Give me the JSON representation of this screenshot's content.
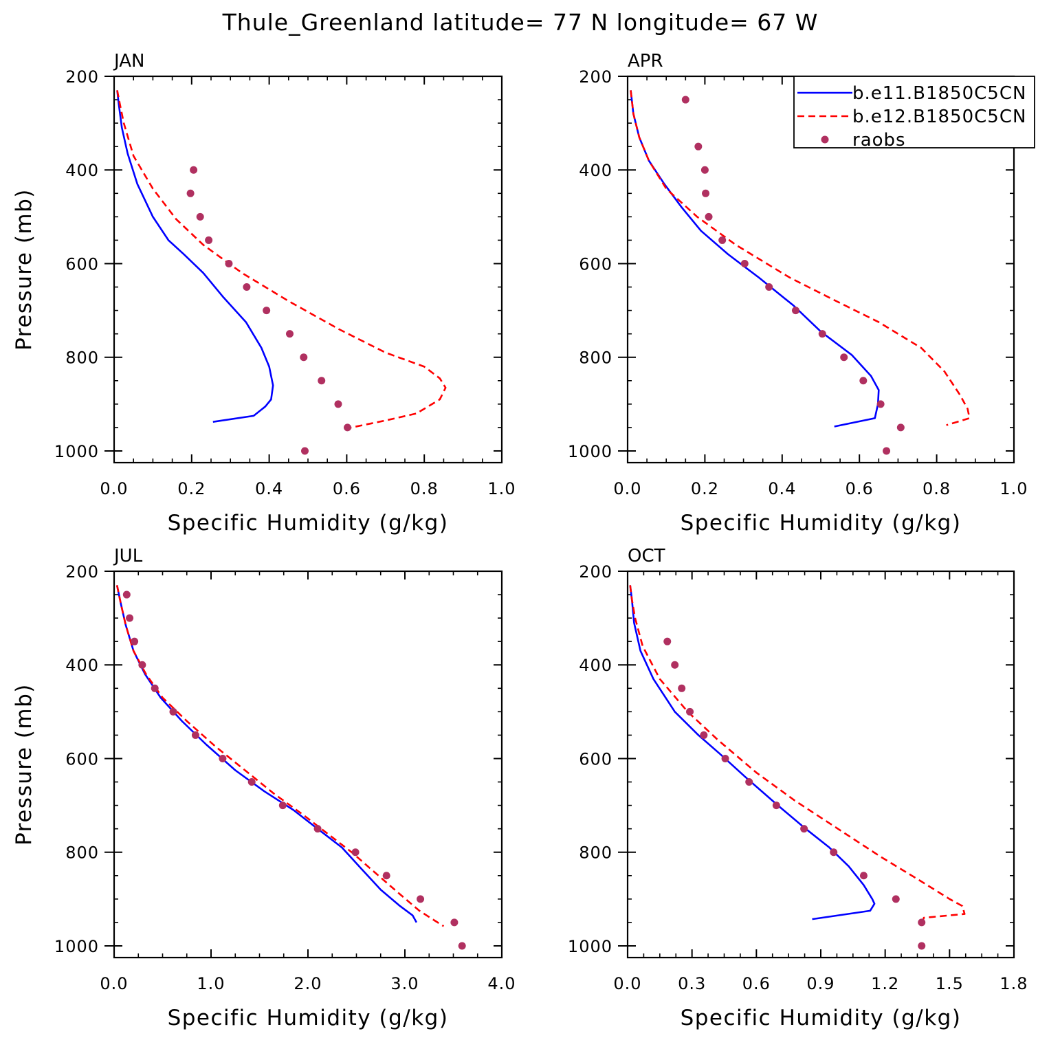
{
  "title": "Thule_Greenland  latitude= 77 N longitude= 67 W",
  "colors": {
    "model1": "#0000ff",
    "model2": "#ff0000",
    "raobs": "#b03060",
    "axis": "#000000"
  },
  "legend": {
    "placement": "top-right of APR panel",
    "entries": [
      {
        "label": "b.e11.B1850C5CN",
        "style": "solid",
        "color": "#0000ff"
      },
      {
        "label": "b.e12.B1850C5CN",
        "style": "dashed",
        "color": "#ff0000"
      },
      {
        "label": "raobs",
        "style": "dot",
        "color": "#b03060"
      }
    ]
  },
  "chart_data": [
    {
      "type": "line",
      "panel": "JAN",
      "xlabel": "Specific Humidity (g/kg)",
      "ylabel": "Pressure (mb)",
      "xlim": [
        0,
        1.0
      ],
      "ylim": [
        200,
        1025
      ],
      "y_inverted": true,
      "xticks": [
        "0.0",
        "0.2",
        "0.4",
        "0.6",
        "0.8",
        "1.0"
      ],
      "xtick_values": [
        0,
        0.2,
        0.4,
        0.6,
        0.8,
        1.0
      ],
      "yticks": [
        "200",
        "400",
        "600",
        "800",
        "1000"
      ],
      "yticks_values": [
        200,
        400,
        600,
        800,
        1000
      ],
      "series": [
        {
          "name": "b.e11.B1850C5CN",
          "style": "solid",
          "points": [
            [
              0.008,
              230
            ],
            [
              0.012,
              260
            ],
            [
              0.02,
              310
            ],
            [
              0.035,
              365
            ],
            [
              0.06,
              430
            ],
            [
              0.1,
              500
            ],
            [
              0.14,
              550
            ],
            [
              0.18,
              580
            ],
            [
              0.23,
              620
            ],
            [
              0.28,
              670
            ],
            [
              0.34,
              725
            ],
            [
              0.38,
              780
            ],
            [
              0.4,
              820
            ],
            [
              0.41,
              860
            ],
            [
              0.405,
              890
            ],
            [
              0.39,
              905
            ],
            [
              0.36,
              925
            ],
            [
              0.255,
              938
            ]
          ]
        },
        {
          "name": "b.e12.B1850C5CN",
          "style": "dashed",
          "points": [
            [
              0.008,
              230
            ],
            [
              0.015,
              260
            ],
            [
              0.025,
              300
            ],
            [
              0.05,
              370
            ],
            [
              0.1,
              440
            ],
            [
              0.16,
              505
            ],
            [
              0.23,
              560
            ],
            [
              0.33,
              620
            ],
            [
              0.45,
              680
            ],
            [
              0.58,
              740
            ],
            [
              0.7,
              790
            ],
            [
              0.8,
              820
            ],
            [
              0.84,
              845
            ],
            [
              0.855,
              865
            ],
            [
              0.84,
              890
            ],
            [
              0.78,
              920
            ],
            [
              0.7,
              935
            ],
            [
              0.6,
              952
            ]
          ]
        },
        {
          "name": "raobs",
          "style": "dot",
          "points": [
            [
              0.205,
              400
            ],
            [
              0.197,
              450
            ],
            [
              0.222,
              500
            ],
            [
              0.244,
              550
            ],
            [
              0.296,
              600
            ],
            [
              0.342,
              650
            ],
            [
              0.393,
              700
            ],
            [
              0.453,
              750
            ],
            [
              0.489,
              800
            ],
            [
              0.535,
              850
            ],
            [
              0.578,
              900
            ],
            [
              0.602,
              950
            ],
            [
              0.492,
              1000
            ]
          ]
        }
      ]
    },
    {
      "type": "line",
      "panel": "APR",
      "xlabel": "Specific Humidity (g/kg)",
      "ylabel": "",
      "xlim": [
        0,
        1.0
      ],
      "ylim": [
        200,
        1025
      ],
      "y_inverted": true,
      "xticks": [
        "0.0",
        "0.2",
        "0.4",
        "0.6",
        "0.8",
        "1.0"
      ],
      "xtick_values": [
        0,
        0.2,
        0.4,
        0.6,
        0.8,
        1.0
      ],
      "yticks": [
        "200",
        "400",
        "600",
        "800",
        "1000"
      ],
      "yticks_values": [
        200,
        400,
        600,
        800,
        1000
      ],
      "series": [
        {
          "name": "b.e11.B1850C5CN",
          "style": "solid",
          "points": [
            [
              0.008,
              230
            ],
            [
              0.015,
              280
            ],
            [
              0.03,
              330
            ],
            [
              0.055,
              380
            ],
            [
              0.095,
              430
            ],
            [
              0.14,
              480
            ],
            [
              0.19,
              530
            ],
            [
              0.26,
              580
            ],
            [
              0.34,
              630
            ],
            [
              0.43,
              690
            ],
            [
              0.5,
              745
            ],
            [
              0.58,
              795
            ],
            [
              0.63,
              840
            ],
            [
              0.65,
              870
            ],
            [
              0.648,
              900
            ],
            [
              0.64,
              930
            ],
            [
              0.535,
              948
            ]
          ]
        },
        {
          "name": "b.e12.B1850C5CN",
          "style": "dashed",
          "points": [
            [
              0.008,
              230
            ],
            [
              0.015,
              280
            ],
            [
              0.03,
              330
            ],
            [
              0.055,
              380
            ],
            [
              0.1,
              440
            ],
            [
              0.18,
              500
            ],
            [
              0.28,
              560
            ],
            [
              0.42,
              630
            ],
            [
              0.54,
              680
            ],
            [
              0.65,
              725
            ],
            [
              0.76,
              780
            ],
            [
              0.82,
              830
            ],
            [
              0.86,
              880
            ],
            [
              0.88,
              910
            ],
            [
              0.885,
              930
            ],
            [
              0.825,
              945
            ]
          ]
        },
        {
          "name": "raobs",
          "style": "dot",
          "points": [
            [
              0.15,
              250
            ],
            [
              0.183,
              350
            ],
            [
              0.2,
              400
            ],
            [
              0.202,
              450
            ],
            [
              0.21,
              500
            ],
            [
              0.245,
              550
            ],
            [
              0.303,
              600
            ],
            [
              0.366,
              650
            ],
            [
              0.435,
              700
            ],
            [
              0.504,
              750
            ],
            [
              0.56,
              800
            ],
            [
              0.61,
              850
            ],
            [
              0.655,
              900
            ],
            [
              0.707,
              950
            ],
            [
              0.67,
              1000
            ]
          ]
        }
      ]
    },
    {
      "type": "line",
      "panel": "JUL",
      "xlabel": "Specific Humidity (g/kg)",
      "ylabel": "Pressure (mb)",
      "xlim": [
        0,
        4.0
      ],
      "ylim": [
        200,
        1025
      ],
      "y_inverted": true,
      "xticks": [
        "0.0",
        "1.0",
        "2.0",
        "3.0",
        "4.0"
      ],
      "xtick_values": [
        0,
        1.0,
        2.0,
        3.0,
        4.0
      ],
      "yticks": [
        "200",
        "400",
        "600",
        "800",
        "1000"
      ],
      "yticks_values": [
        200,
        400,
        600,
        800,
        1000
      ],
      "series": [
        {
          "name": "b.e11.B1850C5CN",
          "style": "solid",
          "points": [
            [
              0.03,
              230
            ],
            [
              0.07,
              270
            ],
            [
              0.12,
              315
            ],
            [
              0.2,
              370
            ],
            [
              0.32,
              420
            ],
            [
              0.48,
              470
            ],
            [
              0.7,
              520
            ],
            [
              0.95,
              570
            ],
            [
              1.25,
              625
            ],
            [
              1.55,
              670
            ],
            [
              1.85,
              710
            ],
            [
              2.1,
              750
            ],
            [
              2.35,
              790
            ],
            [
              2.55,
              835
            ],
            [
              2.75,
              880
            ],
            [
              2.95,
              915
            ],
            [
              3.08,
              935
            ],
            [
              3.12,
              950
            ]
          ]
        },
        {
          "name": "b.e12.B1850C5CN",
          "style": "dashed",
          "points": [
            [
              0.03,
              230
            ],
            [
              0.07,
              270
            ],
            [
              0.12,
              315
            ],
            [
              0.2,
              370
            ],
            [
              0.33,
              420
            ],
            [
              0.5,
              470
            ],
            [
              0.75,
              520
            ],
            [
              1.05,
              575
            ],
            [
              1.35,
              625
            ],
            [
              1.65,
              675
            ],
            [
              1.95,
              720
            ],
            [
              2.2,
              760
            ],
            [
              2.45,
              800
            ],
            [
              2.7,
              845
            ],
            [
              2.95,
              890
            ],
            [
              3.15,
              925
            ],
            [
              3.3,
              945
            ],
            [
              3.4,
              958
            ]
          ]
        },
        {
          "name": "raobs",
          "style": "dot",
          "points": [
            [
              0.13,
              250
            ],
            [
              0.16,
              300
            ],
            [
              0.21,
              350
            ],
            [
              0.29,
              400
            ],
            [
              0.42,
              450
            ],
            [
              0.61,
              500
            ],
            [
              0.84,
              550
            ],
            [
              1.12,
              600
            ],
            [
              1.42,
              650
            ],
            [
              1.74,
              700
            ],
            [
              2.1,
              750
            ],
            [
              2.49,
              800
            ],
            [
              2.81,
              850
            ],
            [
              3.16,
              900
            ],
            [
              3.51,
              950
            ],
            [
              3.59,
              1000
            ]
          ]
        }
      ]
    },
    {
      "type": "line",
      "panel": "OCT",
      "xlabel": "Specific Humidity (g/kg)",
      "ylabel": "",
      "xlim": [
        0,
        1.8
      ],
      "ylim": [
        200,
        1025
      ],
      "y_inverted": true,
      "xticks": [
        "0.0",
        "0.3",
        "0.6",
        "0.9",
        "1.2",
        "1.5",
        "1.8"
      ],
      "xtick_values": [
        0,
        0.3,
        0.6,
        0.9,
        1.2,
        1.5,
        1.8
      ],
      "yticks": [
        "200",
        "400",
        "600",
        "800",
        "1000"
      ],
      "yticks_values": [
        200,
        400,
        600,
        800,
        1000
      ],
      "series": [
        {
          "name": "b.e11.B1850C5CN",
          "style": "solid",
          "points": [
            [
              0.012,
              230
            ],
            [
              0.02,
              260
            ],
            [
              0.03,
              310
            ],
            [
              0.06,
              370
            ],
            [
              0.12,
              430
            ],
            [
              0.22,
              500
            ],
            [
              0.33,
              550
            ],
            [
              0.43,
              590
            ],
            [
              0.55,
              640
            ],
            [
              0.7,
              700
            ],
            [
              0.83,
              750
            ],
            [
              0.94,
              790
            ],
            [
              1.03,
              830
            ],
            [
              1.1,
              870
            ],
            [
              1.14,
              900
            ],
            [
              1.15,
              910
            ],
            [
              1.13,
              925
            ],
            [
              0.86,
              943
            ]
          ]
        },
        {
          "name": "b.e12.B1850C5CN",
          "style": "dashed",
          "points": [
            [
              0.012,
              230
            ],
            [
              0.02,
              260
            ],
            [
              0.035,
              300
            ],
            [
              0.07,
              360
            ],
            [
              0.15,
              430
            ],
            [
              0.28,
              500
            ],
            [
              0.42,
              560
            ],
            [
              0.6,
              630
            ],
            [
              0.78,
              690
            ],
            [
              0.98,
              750
            ],
            [
              1.18,
              810
            ],
            [
              1.36,
              860
            ],
            [
              1.5,
              900
            ],
            [
              1.56,
              915
            ],
            [
              1.57,
              932
            ],
            [
              1.38,
              940
            ],
            [
              1.37,
              955
            ]
          ]
        },
        {
          "name": "raobs",
          "style": "dot",
          "points": [
            [
              0.185,
              350
            ],
            [
              0.22,
              400
            ],
            [
              0.252,
              450
            ],
            [
              0.29,
              500
            ],
            [
              0.355,
              550
            ],
            [
              0.455,
              600
            ],
            [
              0.566,
              650
            ],
            [
              0.693,
              700
            ],
            [
              0.822,
              750
            ],
            [
              0.96,
              800
            ],
            [
              1.1,
              850
            ],
            [
              1.25,
              900
            ],
            [
              1.37,
              950
            ],
            [
              1.37,
              1000
            ]
          ]
        }
      ]
    }
  ]
}
